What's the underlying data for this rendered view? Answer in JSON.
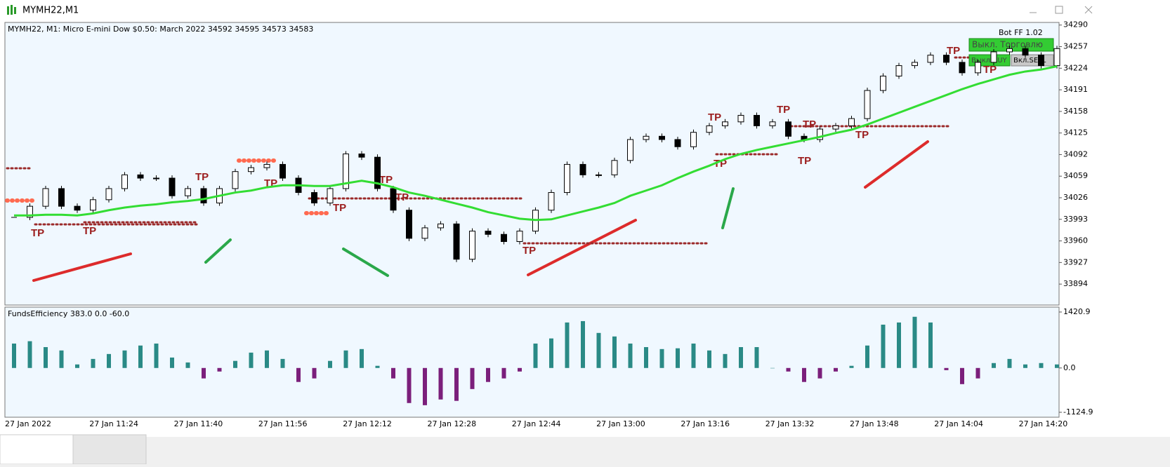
{
  "window": {
    "title": "MYMH22,M1"
  },
  "bot": {
    "title": "Bot FF 1.02",
    "buttons": [
      "Выкл. Торговлю",
      "Выкл.BUY",
      "Вкл.SELL"
    ]
  },
  "annotations": [
    "TP",
    "TP",
    "TP",
    "TP",
    "TP",
    "TP",
    "TP",
    "TP",
    "TP",
    "TP",
    "TP",
    "TP",
    "TP",
    "TP",
    "TP",
    "TP"
  ],
  "chart_data": [
    {
      "type": "candlestick",
      "title": "MYMH22, M1:  Micro E-mini Dow $0.50: March 2022  34592 34595 34573 34583",
      "time_labels": [
        "27 Jan 2022",
        "27 Jan 11:24",
        "27 Jan 11:40",
        "27 Jan 11:56",
        "27 Jan 12:12",
        "27 Jan 12:28",
        "27 Jan 12:44",
        "27 Jan 13:00",
        "27 Jan 13:16",
        "27 Jan 13:32",
        "27 Jan 13:48",
        "27 Jan 14:04",
        "27 Jan 14:20"
      ],
      "values": [
        33996,
        34013,
        34040,
        34013,
        34007,
        34023,
        34040,
        34061,
        34056,
        34056,
        34029,
        34040,
        34018,
        34040,
        34066,
        34072,
        34077,
        34056,
        34034,
        34018,
        34040,
        34093,
        34088,
        34040,
        34007,
        33964,
        33980,
        33986,
        33932,
        33975,
        33970,
        33959,
        33975,
        34007,
        34034,
        34077,
        34061,
        34061,
        34083,
        34115,
        34120,
        34115,
        34104,
        34126,
        34136,
        34142,
        34152,
        34136,
        34142,
        34120,
        34115,
        34131,
        34136,
        34147,
        34190,
        34212,
        34228,
        34233,
        34244,
        34233,
        34217,
        34233,
        34249,
        34254,
        34244,
        34228,
        34254
      ],
      "ma": {
        "color": "#33dd33",
        "values": [
          33999,
          33999,
          34000,
          34000,
          33999,
          34002,
          34007,
          34011,
          34014,
          34016,
          34019,
          34021,
          34024,
          34029,
          34034,
          34037,
          34042,
          34045,
          34045,
          34044,
          34044,
          34048,
          34052,
          34048,
          34042,
          34034,
          34029,
          34023,
          34017,
          34011,
          34004,
          33999,
          33994,
          33992,
          33993,
          33999,
          34005,
          34011,
          34018,
          34029,
          34037,
          34045,
          34056,
          34066,
          34075,
          34085,
          34093,
          34099,
          34104,
          34109,
          34114,
          34119,
          34125,
          34130,
          34138,
          34147,
          34156,
          34165,
          34174,
          34183,
          34192,
          34200,
          34207,
          34214,
          34219,
          34222,
          34227
        ]
      },
      "colors": {
        "up": "#ffffff",
        "down": "#000000"
      },
      "ylim": [
        33862,
        34294
      ],
      "yticks": [
        34290,
        34257,
        34224,
        34191,
        34158,
        34125,
        34092,
        34059,
        34026,
        33993,
        33960,
        33927,
        33894
      ]
    },
    {
      "type": "bar",
      "title": "FundsEfficiency 383.0 0.0 -60.0",
      "values": [
        620,
        680,
        530,
        445,
        90,
        230,
        355,
        445,
        570,
        620,
        265,
        140,
        -265,
        -90,
        180,
        390,
        445,
        230,
        -355,
        -265,
        180,
        445,
        480,
        55,
        -265,
        -890,
        -945,
        -800,
        -835,
        -535,
        -355,
        -265,
        -90,
        620,
        750,
        1155,
        1190,
        890,
        800,
        620,
        530,
        480,
        500,
        620,
        445,
        355,
        530,
        530,
        0,
        -90,
        -355,
        -265,
        -90,
        55,
        570,
        1100,
        1155,
        1300,
        1155,
        -55,
        -410,
        -265,
        125,
        230,
        90,
        125,
        90
      ],
      "colors": {
        "up": "#2a8a86",
        "down": "#7b1f7b"
      },
      "ylim": [
        -1250,
        1545
      ],
      "yticks": [
        1420.9,
        {
          "value": 0,
          "label": "0.0"
        },
        -1124.9
      ]
    }
  ]
}
